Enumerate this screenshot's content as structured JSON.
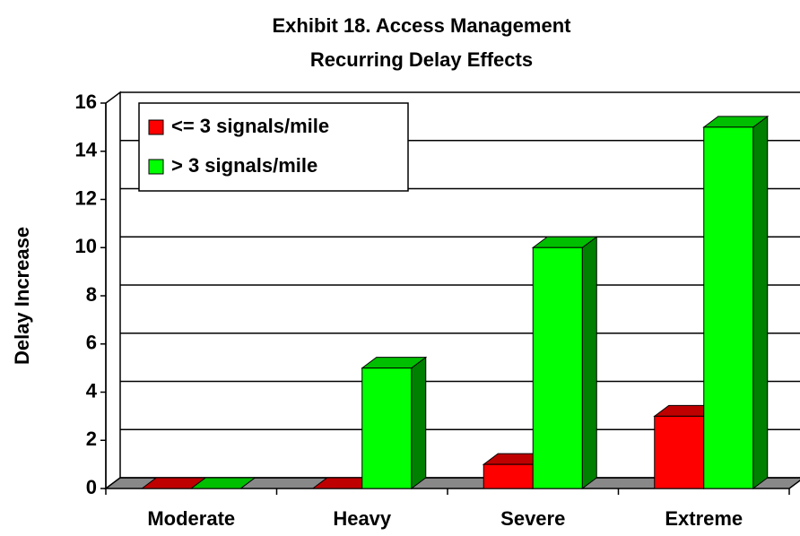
{
  "chart_data": {
    "type": "bar3d",
    "title": [
      "Exhibit 18.  Access Management",
      "Recurring Delay Effects"
    ],
    "y_label": "Delay Increase",
    "categories": [
      "Moderate",
      "Heavy",
      "Severe",
      "Extreme"
    ],
    "series": [
      {
        "name": "<= 3 signals/mile",
        "color": "#ff0000",
        "values": [
          0,
          0,
          1,
          3
        ]
      },
      {
        "name": "> 3 signals/mile",
        "color": "#00ff00",
        "values": [
          0,
          5,
          10,
          15
        ]
      }
    ],
    "ylim": [
      0,
      16
    ],
    "yticks": [
      0,
      2,
      4,
      6,
      8,
      10,
      12,
      14,
      16
    ],
    "grid": true,
    "legend": "upper left"
  }
}
